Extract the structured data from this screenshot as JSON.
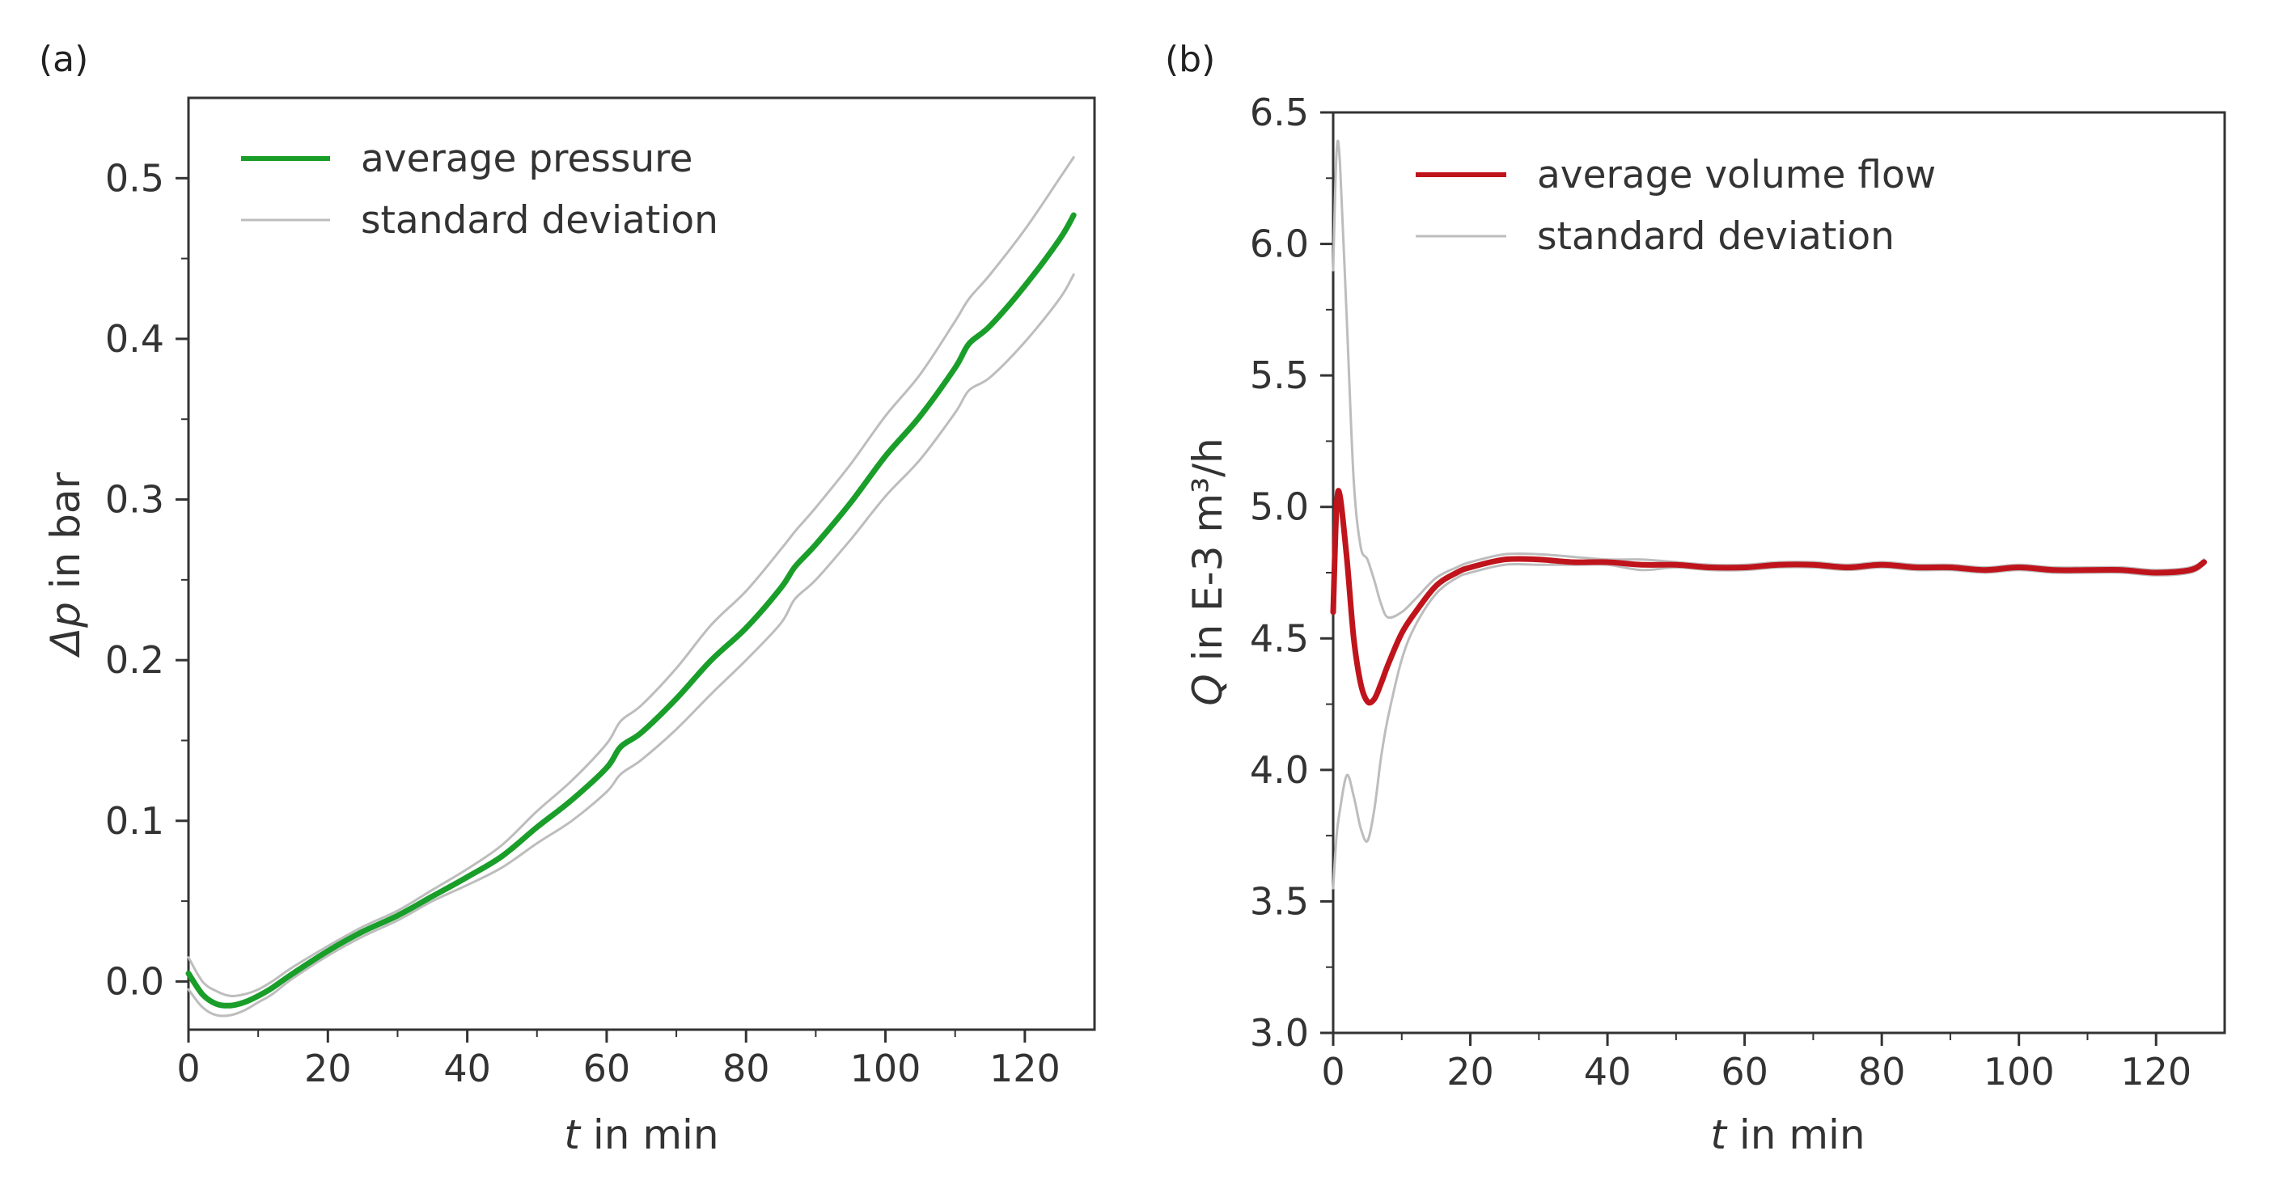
{
  "chart_data": [
    {
      "panel_label": "(a)",
      "type": "line",
      "xlabel_var": "t",
      "xlabel_rest": " in min",
      "ylabel_var": "Δp",
      "ylabel_rest": " in bar",
      "xlim": [
        0,
        130
      ],
      "ylim": [
        -0.03,
        0.55
      ],
      "xticks": [
        0,
        20,
        40,
        60,
        80,
        100,
        120
      ],
      "xtick_labels": [
        "0",
        "20",
        "40",
        "60",
        "80",
        "100",
        "120"
      ],
      "yticks": [
        0.0,
        0.1,
        0.2,
        0.3,
        0.4,
        0.5
      ],
      "ytick_labels": [
        "0.0",
        "0.1",
        "0.2",
        "0.3",
        "0.4",
        "0.5"
      ],
      "legend": [
        "average pressure",
        "standard deviation"
      ],
      "legend_position": "top-left",
      "colors": {
        "mean": "#1a9e2a",
        "std": "#bdbdbd"
      },
      "x": [
        0,
        2,
        4,
        6,
        8,
        10,
        12,
        15,
        20,
        25,
        30,
        35,
        40,
        45,
        50,
        55,
        60,
        62,
        65,
        70,
        75,
        80,
        85,
        87,
        90,
        95,
        100,
        105,
        110,
        112,
        115,
        120,
        125,
        127
      ],
      "series": [
        {
          "name": "average pressure",
          "role": "mean",
          "values": [
            0.005,
            -0.008,
            -0.014,
            -0.015,
            -0.013,
            -0.009,
            -0.004,
            0.005,
            0.019,
            0.031,
            0.041,
            0.053,
            0.065,
            0.078,
            0.096,
            0.113,
            0.133,
            0.146,
            0.155,
            0.176,
            0.2,
            0.22,
            0.245,
            0.258,
            0.272,
            0.298,
            0.327,
            0.352,
            0.382,
            0.397,
            0.408,
            0.433,
            0.462,
            0.477
          ]
        },
        {
          "name": "standard deviation",
          "role": "upper",
          "values": [
            0.015,
            0.0,
            -0.006,
            -0.009,
            -0.008,
            -0.005,
            0.0,
            0.009,
            0.022,
            0.034,
            0.044,
            0.057,
            0.07,
            0.085,
            0.106,
            0.125,
            0.148,
            0.162,
            0.172,
            0.195,
            0.222,
            0.243,
            0.269,
            0.28,
            0.295,
            0.322,
            0.352,
            0.378,
            0.411,
            0.425,
            0.44,
            0.468,
            0.5,
            0.513
          ]
        },
        {
          "name": "standard deviation",
          "role": "lower",
          "values": [
            -0.005,
            -0.016,
            -0.021,
            -0.021,
            -0.018,
            -0.013,
            -0.008,
            0.002,
            0.016,
            0.028,
            0.038,
            0.05,
            0.06,
            0.071,
            0.086,
            0.1,
            0.118,
            0.129,
            0.138,
            0.157,
            0.179,
            0.2,
            0.223,
            0.238,
            0.25,
            0.275,
            0.302,
            0.325,
            0.354,
            0.368,
            0.376,
            0.398,
            0.425,
            0.44
          ]
        }
      ]
    },
    {
      "panel_label": "(b)",
      "type": "line",
      "xlabel_var": "t",
      "xlabel_rest": " in min",
      "ylabel_var": "Q",
      "ylabel_rest": " in E-3 m³/h",
      "xlim": [
        0,
        130
      ],
      "ylim": [
        3.0,
        6.5
      ],
      "xticks": [
        0,
        20,
        40,
        60,
        80,
        100,
        120
      ],
      "xtick_labels": [
        "0",
        "20",
        "40",
        "60",
        "80",
        "100",
        "120"
      ],
      "yticks": [
        3.0,
        3.5,
        4.0,
        4.5,
        5.0,
        5.5,
        6.0,
        6.5
      ],
      "ytick_labels": [
        "3.0",
        "3.5",
        "4.0",
        "4.5",
        "5.0",
        "5.5",
        "6.0",
        "6.5"
      ],
      "legend": [
        "average volume flow",
        "standard deviation"
      ],
      "legend_position": "top-left",
      "colors": {
        "mean": "#c0141c",
        "std": "#bdbdbd"
      },
      "x": [
        0,
        0.5,
        1,
        2,
        3,
        4,
        5,
        6,
        7,
        8,
        10,
        12,
        15,
        18,
        20,
        25,
        30,
        35,
        40,
        45,
        50,
        55,
        60,
        65,
        70,
        75,
        80,
        85,
        90,
        95,
        100,
        105,
        110,
        115,
        120,
        125,
        127
      ],
      "series": [
        {
          "name": "average volume flow",
          "role": "mean",
          "values": [
            4.6,
            5.0,
            5.04,
            4.8,
            4.5,
            4.33,
            4.26,
            4.27,
            4.33,
            4.4,
            4.52,
            4.6,
            4.7,
            4.75,
            4.77,
            4.8,
            4.8,
            4.79,
            4.79,
            4.78,
            4.78,
            4.77,
            4.77,
            4.78,
            4.78,
            4.77,
            4.78,
            4.77,
            4.77,
            4.76,
            4.77,
            4.76,
            4.76,
            4.76,
            4.75,
            4.76,
            4.79
          ]
        },
        {
          "name": "standard deviation",
          "role": "upper",
          "values": [
            5.9,
            6.35,
            6.3,
            5.7,
            5.1,
            4.85,
            4.8,
            4.72,
            4.63,
            4.58,
            4.6,
            4.65,
            4.73,
            4.77,
            4.79,
            4.82,
            4.82,
            4.81,
            4.8,
            4.8,
            4.79,
            4.78,
            4.78,
            4.79,
            4.79,
            4.78,
            4.79,
            4.78,
            4.78,
            4.77,
            4.78,
            4.77,
            4.77,
            4.77,
            4.76,
            4.77,
            4.8
          ]
        },
        {
          "name": "standard deviation",
          "role": "lower",
          "values": [
            3.55,
            3.75,
            3.85,
            3.98,
            3.9,
            3.78,
            3.73,
            3.85,
            4.05,
            4.2,
            4.42,
            4.55,
            4.67,
            4.73,
            4.75,
            4.78,
            4.78,
            4.78,
            4.78,
            4.76,
            4.77,
            4.76,
            4.76,
            4.77,
            4.77,
            4.76,
            4.77,
            4.76,
            4.76,
            4.75,
            4.76,
            4.75,
            4.75,
            4.75,
            4.74,
            4.75,
            4.78
          ]
        }
      ]
    }
  ]
}
